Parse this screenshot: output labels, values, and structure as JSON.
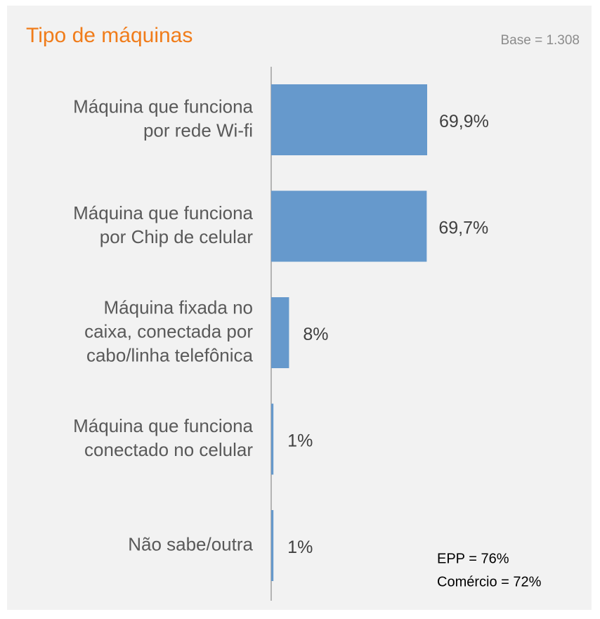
{
  "chart_data": {
    "type": "bar",
    "orientation": "horizontal",
    "title": "Tipo de máquinas",
    "subtitle": "Base = 1.308",
    "categories": [
      [
        "Máquina que funciona",
        "por rede Wi-fi"
      ],
      [
        "Máquina que funciona",
        "por Chip de celular"
      ],
      [
        "Máquina fixada no",
        "caixa, conectada por",
        "cabo/linha telefônica"
      ],
      [
        "Máquina que funciona",
        "conectado no celular"
      ],
      [
        "Não sabe/outra"
      ]
    ],
    "values": [
      69.9,
      69.7,
      8,
      1,
      1
    ],
    "value_labels": [
      "69,9%",
      "69,7%",
      "8%",
      "1%",
      "1%"
    ],
    "color": "#6699cc",
    "annotations": [
      "EPP = 76%",
      "Comércio = 72%"
    ]
  }
}
